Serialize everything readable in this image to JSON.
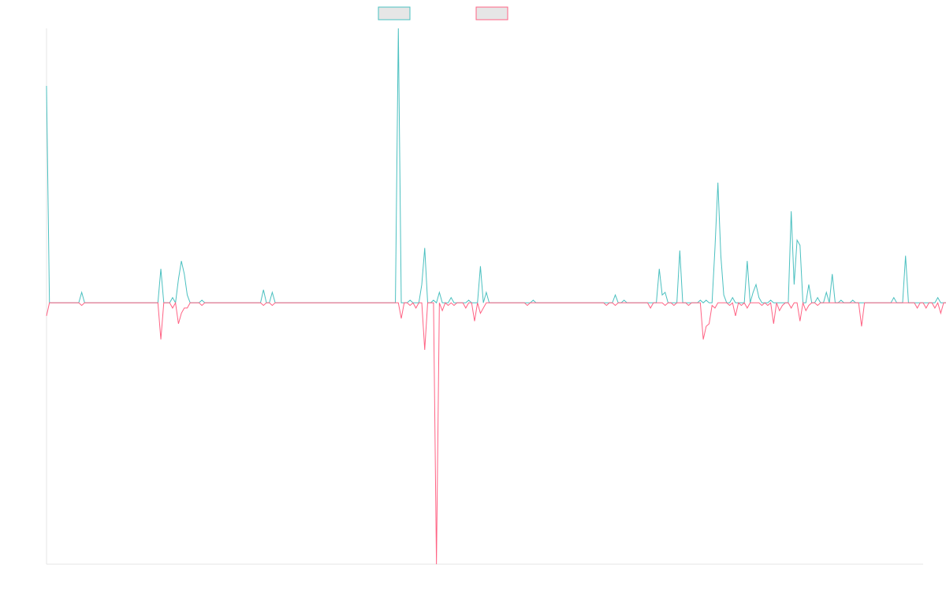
{
  "chart_data": {
    "type": "line",
    "title": "",
    "xlabel": "",
    "ylabel": "",
    "x_count": 300,
    "ylim": [
      -1.0,
      1.05
    ],
    "grid": false,
    "legend_position": "top-center",
    "series": [
      {
        "key": "positive",
        "color": "#4bc0c0",
        "legend_fill": "#e6e6e6",
        "values": [
          0.83,
          0,
          0,
          0,
          0,
          0,
          0,
          0,
          0,
          0,
          0,
          0,
          0.04,
          0,
          0,
          0,
          0,
          0,
          0,
          0,
          0,
          0,
          0,
          0,
          0,
          0,
          0,
          0,
          0,
          0,
          0,
          0,
          0,
          0,
          0,
          0,
          0,
          0,
          0,
          0.13,
          0,
          0,
          0,
          0.02,
          0,
          0.09,
          0.16,
          0.11,
          0.03,
          0,
          0,
          0,
          0,
          0.01,
          0,
          0,
          0,
          0,
          0,
          0,
          0,
          0,
          0,
          0,
          0,
          0,
          0,
          0,
          0,
          0,
          0,
          0,
          0,
          0,
          0.05,
          0,
          0,
          0.04,
          0,
          0,
          0,
          0,
          0,
          0,
          0,
          0,
          0,
          0,
          0,
          0,
          0,
          0,
          0,
          0,
          0,
          0,
          0,
          0,
          0,
          0,
          0,
          0,
          0,
          0,
          0,
          0,
          0,
          0,
          0,
          0,
          0,
          0,
          0,
          0,
          0,
          0,
          0,
          0,
          0,
          0,
          1.05,
          0,
          0,
          0,
          0.01,
          0,
          0,
          0,
          0.07,
          0.21,
          0,
          0,
          0.01,
          0,
          0.04,
          0,
          0,
          0,
          0.02,
          0,
          0,
          0,
          0,
          0,
          0.01,
          0,
          0,
          0,
          0.14,
          0,
          0.04,
          0,
          0,
          0,
          0,
          0,
          0,
          0,
          0,
          0,
          0,
          0,
          0,
          0,
          0,
          0,
          0.01,
          0,
          0,
          0,
          0,
          0,
          0,
          0,
          0,
          0,
          0,
          0,
          0,
          0,
          0,
          0,
          0,
          0,
          0,
          0,
          0,
          0,
          0,
          0,
          0,
          0,
          0,
          0,
          0.03,
          0,
          0,
          0.01,
          0,
          0,
          0,
          0,
          0,
          0,
          0,
          0,
          0,
          0,
          0,
          0.13,
          0.03,
          0.04,
          0,
          0,
          0,
          0,
          0.2,
          0,
          0,
          0,
          0,
          0,
          0,
          0.01,
          0,
          0.01,
          0,
          0,
          0.21,
          0.46,
          0.18,
          0.03,
          0,
          0,
          0.02,
          0,
          0,
          0,
          0,
          0.16,
          0,
          0.04,
          0.07,
          0.02,
          0,
          0,
          0,
          0.01,
          0,
          0,
          0,
          0,
          0,
          0,
          0.35,
          0.07,
          0.24,
          0.22,
          0,
          0,
          0.07,
          0,
          0,
          0.02,
          0,
          0,
          0.04,
          0,
          0.11,
          0,
          0,
          0.01,
          0,
          0,
          0,
          0.01,
          0,
          0,
          0,
          0,
          0,
          0,
          0,
          0,
          0,
          0,
          0,
          0,
          0,
          0.02,
          0,
          0,
          0,
          0.18,
          0,
          0,
          0,
          0,
          0,
          0,
          0,
          0,
          0,
          0,
          0.02,
          0,
          0,
          0,
          0,
          0,
          0,
          0,
          0,
          0.01,
          0,
          0,
          0.02,
          0,
          0,
          0.08,
          0,
          0.01,
          0,
          0,
          0.08,
          0,
          0,
          0,
          0.13,
          0.04,
          0.06
        ]
      },
      {
        "key": "negative",
        "color": "#ff6384",
        "legend_fill": "#e6e6e6",
        "values": [
          -0.05,
          0,
          0,
          0,
          0,
          0,
          0,
          0,
          0,
          0,
          0,
          0,
          -0.01,
          0,
          0,
          0,
          0,
          0,
          0,
          0,
          0,
          0,
          0,
          0,
          0,
          0,
          0,
          0,
          0,
          0,
          0,
          0,
          0,
          0,
          0,
          0,
          0,
          0,
          0,
          -0.14,
          0,
          0,
          0,
          -0.02,
          0,
          -0.08,
          -0.04,
          -0.02,
          -0.02,
          0,
          0,
          0,
          0,
          -0.01,
          0,
          0,
          0,
          0,
          0,
          0,
          0,
          0,
          0,
          0,
          0,
          0,
          0,
          0,
          0,
          0,
          0,
          0,
          0,
          0,
          -0.01,
          0,
          0,
          -0.01,
          0,
          0,
          0,
          0,
          0,
          0,
          0,
          0,
          0,
          0,
          0,
          0,
          0,
          0,
          0,
          0,
          0,
          0,
          0,
          0,
          0,
          0,
          0,
          0,
          0,
          0,
          0,
          0,
          0,
          0,
          0,
          0,
          0,
          0,
          0,
          0,
          0,
          0,
          0,
          0,
          0,
          0,
          0,
          -0.06,
          0,
          0,
          -0.01,
          0,
          -0.02,
          0,
          0,
          -0.18,
          0,
          0,
          0,
          -1.0,
          0,
          -0.03,
          0,
          -0.01,
          0,
          -0.01,
          0,
          0,
          0,
          -0.02,
          0,
          0,
          -0.07,
          0,
          -0.04,
          -0.02,
          0,
          0,
          0,
          0,
          0,
          0,
          0,
          0,
          0,
          0,
          0,
          0,
          0,
          0,
          -0.01,
          0,
          0,
          0,
          0,
          0,
          0,
          0,
          0,
          0,
          0,
          0,
          0,
          0,
          0,
          0,
          0,
          0,
          0,
          0,
          0,
          0,
          0,
          0,
          0,
          0,
          0,
          -0.01,
          0,
          0,
          -0.01,
          0,
          0,
          0,
          0,
          0,
          0,
          0,
          0,
          0,
          0,
          0,
          -0.02,
          0,
          0,
          0,
          0,
          -0.01,
          0,
          0,
          -0.01,
          0,
          0,
          0,
          0,
          -0.01,
          0,
          0,
          0,
          0,
          -0.14,
          -0.09,
          -0.08,
          -0.01,
          -0.02,
          0,
          0,
          0,
          0,
          -0.01,
          0,
          -0.05,
          0,
          -0.01,
          0,
          -0.02,
          0,
          0,
          0,
          0,
          -0.01,
          0,
          -0.01,
          0,
          -0.08,
          0,
          -0.03,
          -0.01,
          0,
          0,
          -0.02,
          0,
          0,
          -0.07,
          0,
          -0.03,
          -0.01,
          0,
          0,
          -0.01,
          0,
          0,
          0,
          0,
          0,
          0,
          0,
          0,
          0,
          0,
          0,
          0,
          0,
          0,
          -0.09,
          0,
          0,
          0,
          0,
          0,
          0,
          0,
          0,
          0,
          0,
          0,
          0,
          0,
          0,
          0,
          0,
          0,
          0,
          -0.02,
          0,
          0,
          -0.02,
          0,
          0,
          -0.02,
          0,
          -0.04,
          0,
          0,
          -0.01,
          -0.02,
          0,
          0,
          -0.02,
          -0.01,
          -0.01
        ]
      }
    ]
  }
}
